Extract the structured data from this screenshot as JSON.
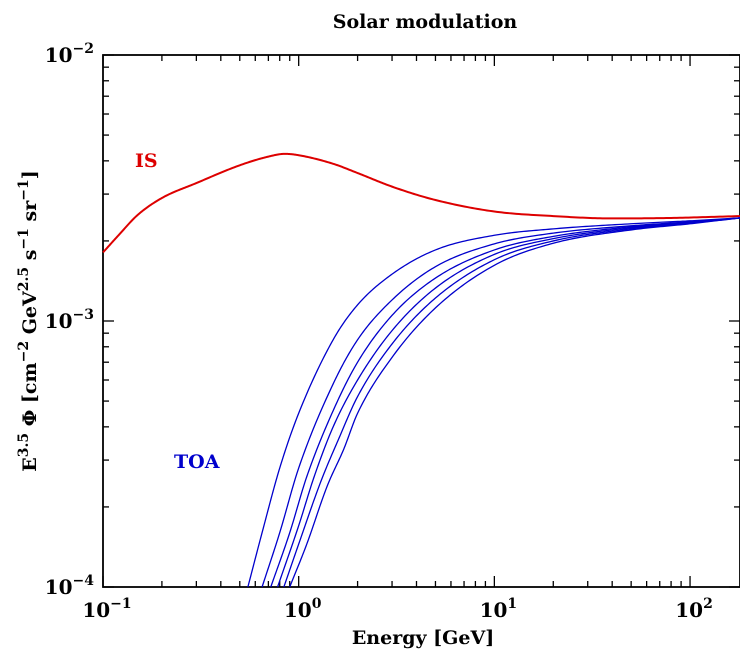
{
  "chart_data": {
    "type": "line",
    "title": "Solar modulation",
    "xlabel": "Energy [GeV]",
    "ylabel": {
      "base": "E",
      "exp1": "3.5",
      "phi": " Φ [cm",
      "exp2": "−2",
      "gev": " GeV",
      "exp3": "2.5",
      "s": " s",
      "exp4": "−1",
      "sr": " sr",
      "exp5": "−1",
      "close": "]"
    },
    "x_scale": "log",
    "y_scale": "log",
    "xlim": [
      0.1,
      180
    ],
    "ylim": [
      0.0001,
      0.01
    ],
    "x_ticks": [
      {
        "value": 0.1,
        "base": "10",
        "exp": "−1"
      },
      {
        "value": 1,
        "base": "10",
        "exp": "0"
      },
      {
        "value": 10,
        "base": "10",
        "exp": "1"
      },
      {
        "value": 100,
        "base": "10",
        "exp": "2"
      }
    ],
    "y_ticks": [
      {
        "value": 0.0001,
        "base": "10",
        "exp": "−4"
      },
      {
        "value": 0.001,
        "base": "10",
        "exp": "−3"
      },
      {
        "value": 0.01,
        "base": "10",
        "exp": "−2"
      }
    ],
    "grid": false,
    "series": [
      {
        "name": "IS",
        "color": "#dd0000",
        "points": [
          [
            0.1,
            0.00181
          ],
          [
            0.12,
            0.0021
          ],
          [
            0.15,
            0.0025
          ],
          [
            0.2,
            0.0029
          ],
          [
            0.3,
            0.0033
          ],
          [
            0.5,
            0.00385
          ],
          [
            0.7,
            0.00415
          ],
          [
            0.85,
            0.00425
          ],
          [
            1.0,
            0.0042
          ],
          [
            1.5,
            0.0039
          ],
          [
            2.0,
            0.0036
          ],
          [
            3.0,
            0.0032
          ],
          [
            5.0,
            0.00285
          ],
          [
            10,
            0.00258
          ],
          [
            20,
            0.00248
          ],
          [
            40,
            0.00243
          ],
          [
            80,
            0.00244
          ],
          [
            180,
            0.00248
          ]
        ]
      },
      {
        "name": "TOA",
        "color": "#0000cc",
        "points": [
          [
            0.55,
            0.0001
          ],
          [
            0.65,
            0.00016
          ],
          [
            0.8,
            0.00028
          ],
          [
            1.0,
            0.00045
          ],
          [
            1.5,
            0.00085
          ],
          [
            2.0,
            0.00115
          ],
          [
            3.0,
            0.0015
          ],
          [
            5.0,
            0.00185
          ],
          [
            10,
            0.0021
          ],
          [
            20,
            0.00222
          ],
          [
            50,
            0.00232
          ],
          [
            100,
            0.00238
          ],
          [
            180,
            0.00244
          ]
        ]
      },
      {
        "name": "",
        "color": "#0000cc",
        "points": [
          [
            0.65,
            0.0001
          ],
          [
            0.8,
            0.00016
          ],
          [
            1.0,
            0.00028
          ],
          [
            1.5,
            0.00058
          ],
          [
            2.0,
            0.00085
          ],
          [
            3.0,
            0.0012
          ],
          [
            5.0,
            0.0016
          ],
          [
            10,
            0.00195
          ],
          [
            20,
            0.00214
          ],
          [
            50,
            0.00228
          ],
          [
            100,
            0.00236
          ],
          [
            180,
            0.00244
          ]
        ]
      },
      {
        "name": "",
        "color": "#0000cc",
        "points": [
          [
            0.72,
            0.0001
          ],
          [
            0.9,
            0.00016
          ],
          [
            1.1,
            0.00026
          ],
          [
            1.5,
            0.00046
          ],
          [
            2.0,
            0.0007
          ],
          [
            3.0,
            0.00105
          ],
          [
            5.0,
            0.00145
          ],
          [
            10,
            0.00185
          ],
          [
            20,
            0.00208
          ],
          [
            50,
            0.00226
          ],
          [
            100,
            0.00235
          ],
          [
            180,
            0.00244
          ]
        ]
      },
      {
        "name": "",
        "color": "#0000cc",
        "points": [
          [
            0.78,
            0.0001
          ],
          [
            1.0,
            0.00017
          ],
          [
            1.2,
            0.00026
          ],
          [
            1.5,
            0.0004
          ],
          [
            2.0,
            0.0006
          ],
          [
            3.0,
            0.00092
          ],
          [
            5.0,
            0.00133
          ],
          [
            10,
            0.00178
          ],
          [
            20,
            0.00204
          ],
          [
            50,
            0.00224
          ],
          [
            100,
            0.00234
          ],
          [
            180,
            0.00244
          ]
        ]
      },
      {
        "name": "",
        "color": "#0000cc",
        "points": [
          [
            0.84,
            0.0001
          ],
          [
            1.0,
            0.000145
          ],
          [
            1.3,
            0.00025
          ],
          [
            1.6,
            0.00036
          ],
          [
            2.0,
            0.00052
          ],
          [
            3.0,
            0.00082
          ],
          [
            5.0,
            0.00122
          ],
          [
            10,
            0.0017
          ],
          [
            20,
            0.002
          ],
          [
            50,
            0.00222
          ],
          [
            100,
            0.00233
          ],
          [
            180,
            0.00244
          ]
        ]
      },
      {
        "name": "",
        "color": "#0000cc",
        "points": [
          [
            0.9,
            0.0001
          ],
          [
            1.1,
            0.000145
          ],
          [
            1.4,
            0.00024
          ],
          [
            1.7,
            0.00033
          ],
          [
            2.0,
            0.00045
          ],
          [
            3.0,
            0.00073
          ],
          [
            5.0,
            0.00112
          ],
          [
            10,
            0.00162
          ],
          [
            20,
            0.00196
          ],
          [
            50,
            0.0022
          ],
          [
            100,
            0.00232
          ],
          [
            180,
            0.00244
          ]
        ]
      }
    ]
  }
}
